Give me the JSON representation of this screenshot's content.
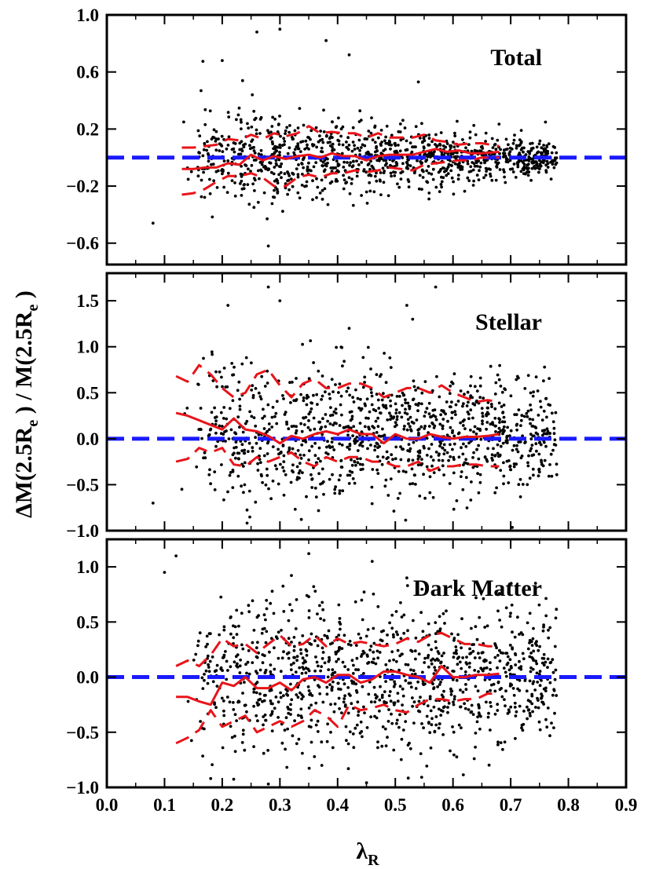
{
  "chart_data": {
    "type": "scatter",
    "shared_x": {
      "label": "λ",
      "label_subscript": "R",
      "range": [
        0.0,
        0.9
      ],
      "ticks": [
        0.0,
        0.1,
        0.2,
        0.3,
        0.4,
        0.5,
        0.6,
        0.7,
        0.8,
        0.9
      ],
      "tick_labels": [
        "0.0",
        "0.1",
        "0.2",
        "0.3",
        "0.4",
        "0.5",
        "0.6",
        "0.7",
        "0.8",
        "0.9"
      ]
    },
    "shared_y_label": {
      "parts": [
        "ΔM(2.5R",
        "e",
        " ) / M(2.5R",
        "e",
        " )"
      ]
    },
    "reference_line": {
      "y": 0.0,
      "color": "#1a1aff",
      "style": "dashed"
    },
    "colors": {
      "points": "#000000",
      "median": "#e8141a",
      "reference": "#1a1aff"
    },
    "panels": [
      {
        "name": "total",
        "title": "Total",
        "ylim": [
          -0.75,
          1.0
        ],
        "yticks": [
          -0.6,
          -0.2,
          0.2,
          0.6,
          1.0
        ],
        "ytick_labels": [
          "−0.6",
          "−0.2",
          "0.2",
          "0.6",
          "1.0"
        ],
        "scatter": {
          "n_points": 1100,
          "x_range": [
            0.07,
            0.78
          ],
          "center": 0.0,
          "spread_at_low_x": 0.2,
          "spread_at_high_x": 0.06,
          "outliers": [
            [
              0.38,
              0.82
            ],
            [
              0.26,
              0.88
            ],
            [
              0.3,
              0.9
            ],
            [
              0.42,
              0.72
            ],
            [
              0.2,
              0.68
            ],
            [
              0.54,
              0.53
            ],
            [
              0.28,
              -0.62
            ],
            [
              0.08,
              -0.46
            ]
          ]
        },
        "bin_x": [
          0.13,
          0.15,
          0.17,
          0.19,
          0.21,
          0.23,
          0.25,
          0.27,
          0.29,
          0.31,
          0.33,
          0.35,
          0.37,
          0.39,
          0.41,
          0.43,
          0.45,
          0.47,
          0.49,
          0.51,
          0.53,
          0.55,
          0.57,
          0.59,
          0.61,
          0.63,
          0.65,
          0.68
        ],
        "median": [
          -0.08,
          -0.08,
          -0.07,
          -0.07,
          -0.04,
          -0.05,
          0.02,
          -0.02,
          0.01,
          -0.01,
          0.01,
          0.02,
          0.0,
          0.03,
          0.01,
          0.01,
          -0.02,
          0.01,
          0.02,
          0.02,
          0.02,
          0.04,
          0.06,
          0.04,
          0.05,
          0.03,
          0.03,
          0.04
        ],
        "upper": [
          0.07,
          0.07,
          0.08,
          0.09,
          0.13,
          0.12,
          0.16,
          0.13,
          0.17,
          0.15,
          0.17,
          0.22,
          0.17,
          0.18,
          0.17,
          0.17,
          0.14,
          0.17,
          0.14,
          0.14,
          0.14,
          0.16,
          0.12,
          0.11,
          0.09,
          0.1,
          0.1,
          0.08
        ],
        "lower": [
          -0.26,
          -0.25,
          -0.22,
          -0.17,
          -0.13,
          -0.13,
          -0.11,
          -0.14,
          -0.2,
          -0.2,
          -0.14,
          -0.12,
          -0.14,
          -0.11,
          -0.11,
          -0.09,
          -0.1,
          -0.09,
          -0.07,
          -0.08,
          -0.09,
          -0.05,
          -0.04,
          -0.03,
          -0.02,
          -0.02,
          0.0,
          0.0
        ]
      },
      {
        "name": "stellar",
        "title": "Stellar",
        "ylim": [
          -1.0,
          1.8
        ],
        "yticks": [
          -1.0,
          -0.5,
          0.0,
          0.5,
          1.0,
          1.5
        ],
        "ytick_labels": [
          "−1.0",
          "−0.5",
          "0.0",
          "0.5",
          "1.0",
          "1.5"
        ],
        "scatter": {
          "n_points": 1100,
          "x_range": [
            0.07,
            0.78
          ],
          "center": 0.05,
          "spread_at_low_x": 0.42,
          "spread_at_high_x": 0.3,
          "outliers": [
            [
              0.28,
              1.65
            ],
            [
              0.57,
              1.65
            ],
            [
              0.3,
              1.5
            ],
            [
              0.21,
              1.45
            ],
            [
              0.52,
              1.45
            ],
            [
              0.53,
              1.3
            ],
            [
              0.42,
              1.2
            ],
            [
              0.08,
              -0.7
            ],
            [
              0.13,
              -0.55
            ]
          ]
        },
        "bin_x": [
          0.12,
          0.14,
          0.16,
          0.18,
          0.2,
          0.22,
          0.24,
          0.26,
          0.28,
          0.3,
          0.32,
          0.34,
          0.36,
          0.38,
          0.4,
          0.42,
          0.44,
          0.46,
          0.48,
          0.5,
          0.52,
          0.54,
          0.56,
          0.58,
          0.6,
          0.62,
          0.64,
          0.66,
          0.68
        ],
        "median": [
          0.28,
          0.25,
          0.2,
          0.15,
          0.1,
          0.22,
          0.1,
          0.08,
          0.03,
          -0.05,
          0.03,
          0.0,
          0.05,
          0.08,
          0.05,
          0.1,
          0.05,
          0.05,
          -0.05,
          0.05,
          0.0,
          0.0,
          0.05,
          0.02,
          0.0,
          0.02,
          0.02,
          0.03,
          0.05
        ],
        "upper": [
          0.68,
          0.62,
          0.8,
          0.7,
          0.55,
          0.45,
          0.5,
          0.7,
          0.75,
          0.58,
          0.45,
          0.6,
          0.65,
          0.55,
          0.55,
          0.6,
          0.6,
          0.55,
          0.45,
          0.5,
          0.55,
          0.55,
          0.5,
          0.58,
          0.5,
          0.45,
          0.4,
          0.42,
          0.4
        ],
        "lower": [
          -0.25,
          -0.22,
          -0.1,
          -0.15,
          -0.1,
          -0.28,
          -0.3,
          -0.2,
          -0.25,
          -0.2,
          -0.15,
          -0.25,
          -0.3,
          -0.2,
          -0.25,
          -0.2,
          -0.2,
          -0.25,
          -0.25,
          -0.3,
          -0.3,
          -0.25,
          -0.35,
          -0.3,
          -0.3,
          -0.28,
          -0.28,
          -0.3,
          -0.3
        ]
      },
      {
        "name": "dark-matter",
        "title": "Dark Matter",
        "ylim": [
          -1.0,
          1.25
        ],
        "yticks": [
          -1.0,
          -0.5,
          0.0,
          0.5,
          1.0
        ],
        "ytick_labels": [
          "−1.0",
          "−0.5",
          "0.0",
          "0.5",
          "1.0"
        ],
        "scatter": {
          "n_points": 1100,
          "x_range": [
            0.07,
            0.78
          ],
          "center": 0.0,
          "spread_at_low_x": 0.38,
          "spread_at_high_x": 0.3,
          "outliers": [
            [
              0.35,
              1.12
            ],
            [
              0.12,
              1.1
            ],
            [
              0.46,
              1.05
            ],
            [
              0.1,
              0.95
            ],
            [
              0.52,
              0.9
            ],
            [
              0.64,
              0.72
            ],
            [
              0.18,
              -0.92
            ],
            [
              0.28,
              -0.97
            ]
          ]
        },
        "bin_x": [
          0.12,
          0.14,
          0.16,
          0.18,
          0.2,
          0.22,
          0.24,
          0.26,
          0.28,
          0.3,
          0.32,
          0.34,
          0.36,
          0.38,
          0.4,
          0.42,
          0.44,
          0.46,
          0.48,
          0.5,
          0.52,
          0.54,
          0.56,
          0.58,
          0.6,
          0.62,
          0.64,
          0.66,
          0.68
        ],
        "median": [
          -0.18,
          -0.18,
          -0.22,
          -0.25,
          -0.05,
          -0.08,
          0.0,
          -0.1,
          -0.1,
          -0.05,
          -0.12,
          -0.02,
          0.0,
          -0.05,
          0.02,
          0.02,
          -0.05,
          -0.02,
          0.05,
          0.05,
          0.02,
          0.0,
          -0.05,
          0.1,
          0.0,
          0.0,
          0.02,
          0.02,
          0.03
        ],
        "upper": [
          0.1,
          0.15,
          0.1,
          0.2,
          0.35,
          0.28,
          0.3,
          0.22,
          0.3,
          0.38,
          0.28,
          0.3,
          0.38,
          0.28,
          0.35,
          0.3,
          0.32,
          0.3,
          0.28,
          0.3,
          0.35,
          0.32,
          0.38,
          0.4,
          0.35,
          0.3,
          0.3,
          0.28,
          0.28
        ],
        "lower": [
          -0.6,
          -0.55,
          -0.48,
          -0.3,
          -0.45,
          -0.4,
          -0.35,
          -0.5,
          -0.45,
          -0.4,
          -0.45,
          -0.4,
          -0.3,
          -0.35,
          -0.45,
          -0.25,
          -0.3,
          -0.28,
          -0.25,
          -0.3,
          -0.32,
          -0.25,
          -0.2,
          -0.2,
          -0.22,
          -0.2,
          -0.2,
          -0.15,
          -0.15
        ]
      }
    ]
  }
}
